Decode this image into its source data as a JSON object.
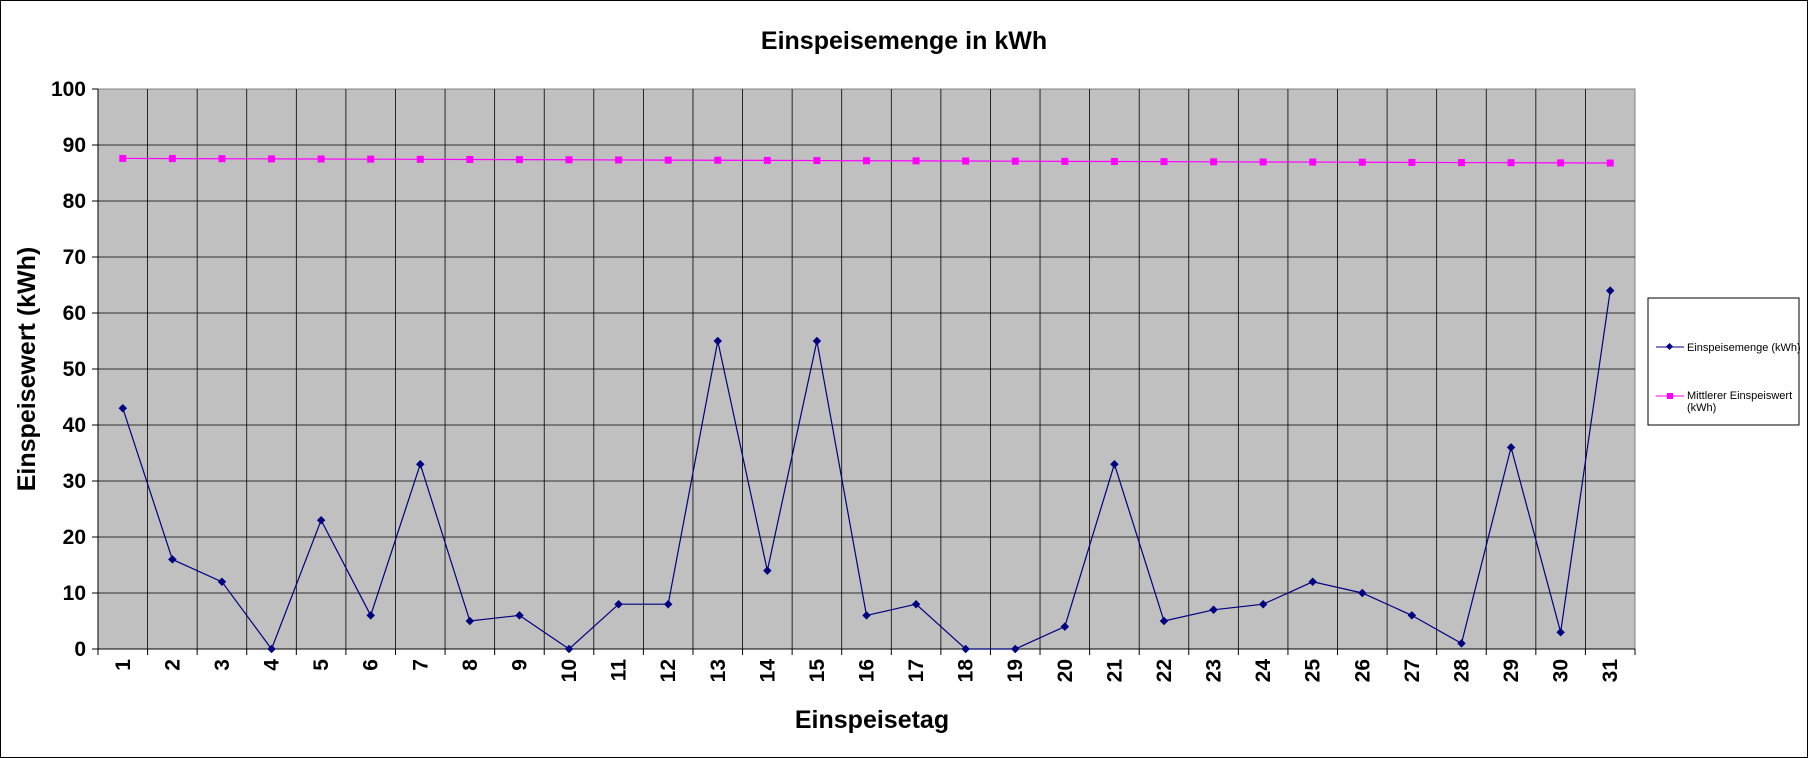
{
  "chart_data": {
    "type": "line",
    "title": "Einspeisemenge in kWh",
    "xlabel": "Einspeisetag",
    "ylabel": "Einspeisewert  (kWh)",
    "ylim": [
      0,
      100
    ],
    "yticks": [
      "0",
      "10",
      "20",
      "30",
      "40",
      "50",
      "60",
      "70",
      "80",
      "90",
      "100"
    ],
    "categories": [
      "1",
      "2",
      "3",
      "4",
      "5",
      "6",
      "7",
      "8",
      "9",
      "10",
      "11",
      "12",
      "13",
      "14",
      "15",
      "16",
      "17",
      "18",
      "19",
      "20",
      "21",
      "22",
      "23",
      "24",
      "25",
      "26",
      "27",
      "28",
      "29",
      "30",
      "31"
    ],
    "grid": true,
    "legend_position": "right",
    "plot_background": "#c0c0c0",
    "series": [
      {
        "name": "Einspeisemenge (kWh)",
        "color": "#000080",
        "marker": "diamond",
        "values": [
          43,
          16,
          12,
          0,
          23,
          6,
          33,
          5,
          6,
          0,
          8,
          8,
          55,
          14,
          55,
          6,
          8,
          0,
          0,
          4,
          33,
          5,
          7,
          8,
          12,
          10,
          6,
          1,
          36,
          3,
          64
        ]
      },
      {
        "name": "Mittlerer Einspeiswert (kWh)",
        "color": "#ff00ff",
        "marker": "square",
        "values": [
          87.6,
          87.57,
          87.55,
          87.52,
          87.5,
          87.47,
          87.44,
          87.41,
          87.39,
          87.36,
          87.33,
          87.3,
          87.28,
          87.25,
          87.22,
          87.19,
          87.17,
          87.14,
          87.11,
          87.08,
          87.06,
          87.03,
          87.0,
          86.97,
          86.95,
          86.92,
          86.89,
          86.86,
          86.84,
          86.81,
          86.78
        ]
      }
    ]
  }
}
